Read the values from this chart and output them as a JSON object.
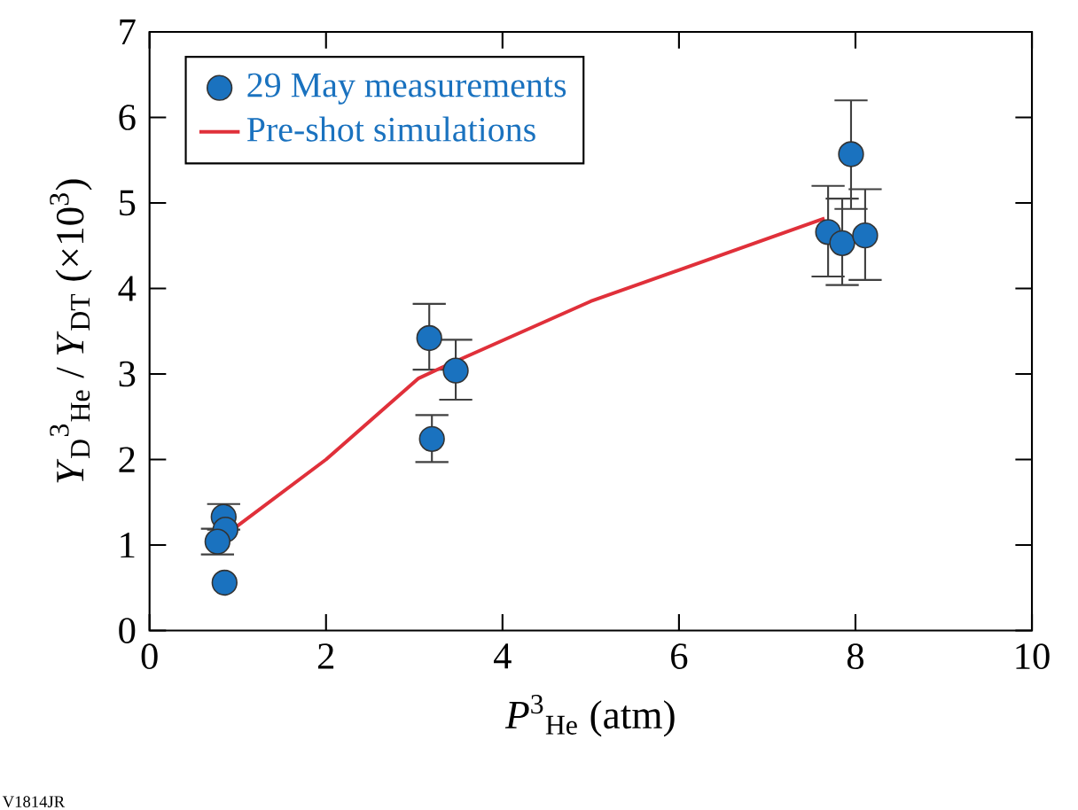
{
  "chart_data": {
    "type": "scatter",
    "xlabel": "*P*$^{3}$$_{He}$ (atm)",
    "ylabel": "*Y*$_{D}$$^{3}$$_{He}$ / *Y*$_{DT}$ (×10$^{3}$)",
    "xlim": [
      0,
      10
    ],
    "ylim": [
      0,
      7
    ],
    "xticks": [
      0,
      2,
      4,
      6,
      8,
      10
    ],
    "yticks": [
      0,
      1,
      2,
      3,
      4,
      5,
      6,
      7
    ],
    "grid": false,
    "legend": "top left",
    "annotations": [
      "V1814JR"
    ],
    "series": [
      {
        "name": "29 May measurements",
        "marker": "circle",
        "color": "#1a72bf",
        "x": [
          0.84,
          0.86,
          0.77,
          0.85,
          3.17,
          3.47,
          3.2,
          7.95,
          7.69,
          7.85,
          8.11
        ],
        "values": [
          1.33,
          1.18,
          1.04,
          0.56,
          3.42,
          3.04,
          2.24,
          5.57,
          4.66,
          4.53,
          4.62
        ],
        "errors": [
          0.15,
          null,
          0.15,
          null,
          [
            3.05,
            3.82
          ],
          [
            2.7,
            3.4
          ],
          [
            1.97,
            2.52
          ],
          [
            4.93,
            6.2
          ],
          [
            4.14,
            5.2
          ],
          [
            4.04,
            5.05
          ],
          [
            4.1,
            5.16
          ]
        ]
      },
      {
        "name": "Pre-shot simulations",
        "type": "line",
        "marker": "none",
        "line_style": "solid",
        "color": "#e0303a",
        "x": [
          0.9,
          2.0,
          3.05,
          3.3,
          5.0,
          7.65
        ],
        "values": [
          1.15,
          2.0,
          2.95,
          3.07,
          3.85,
          4.82
        ]
      }
    ]
  }
}
